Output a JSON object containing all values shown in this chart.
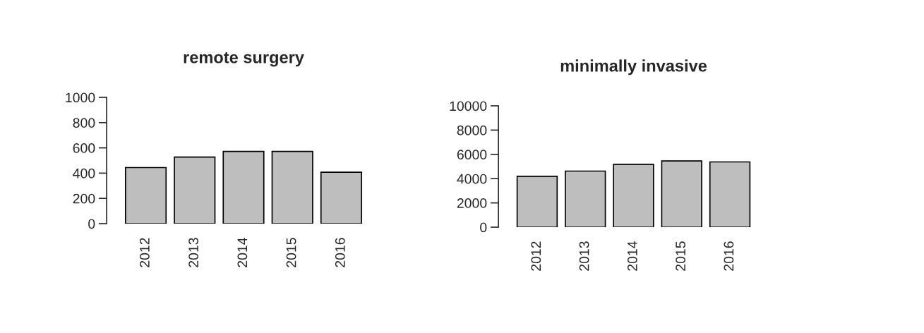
{
  "chart_data": [
    {
      "type": "bar",
      "title": "remote surgery",
      "categories": [
        "2012",
        "2013",
        "2014",
        "2015",
        "2016"
      ],
      "values": [
        444,
        527,
        572,
        572,
        407
      ],
      "color": "#bebebe",
      "ylim": [
        0,
        1000
      ],
      "yticks": [
        0,
        200,
        400,
        600,
        800,
        1000
      ],
      "grid": false,
      "legend": false
    },
    {
      "type": "bar",
      "title": "minimally invasive",
      "categories": [
        "2012",
        "2013",
        "2014",
        "2015",
        "2016"
      ],
      "values": [
        4190,
        4620,
        5185,
        5458,
        5380
      ],
      "color": "#bebebe",
      "ylim": [
        0,
        10000
      ],
      "yticks": [
        0,
        2000,
        4000,
        6000,
        8000,
        10000
      ],
      "grid": false,
      "legend": false
    }
  ]
}
